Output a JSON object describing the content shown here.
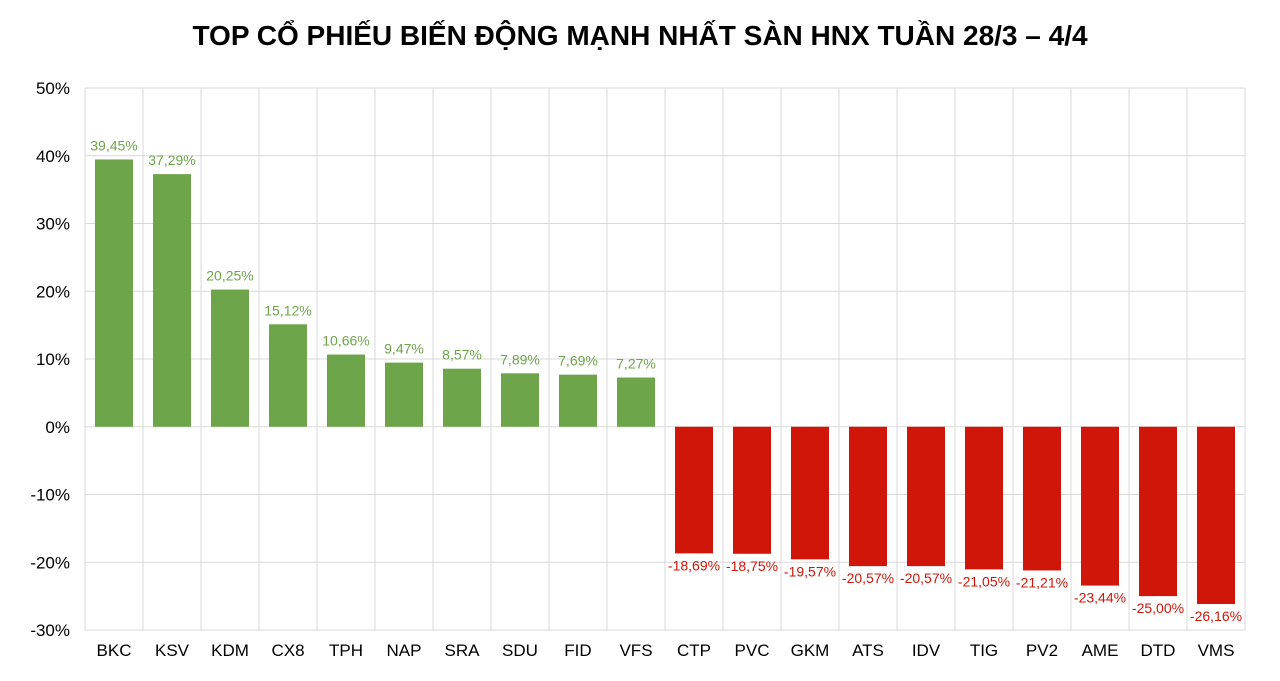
{
  "chart_data": {
    "type": "bar",
    "title": "TOP CỔ PHIẾU BIẾN ĐỘNG MẠNH NHẤT SÀN HNX TUẦN 28/3 – 4/4",
    "xlabel": "",
    "ylabel": "",
    "ylim": [
      -30,
      50
    ],
    "yticks": [
      "50%",
      "40%",
      "30%",
      "20%",
      "10%",
      "0%",
      "-10%",
      "-20%",
      "-30%"
    ],
    "ytick_values": [
      50,
      40,
      30,
      20,
      10,
      0,
      -10,
      -20,
      -30
    ],
    "grid": true,
    "legend": "none",
    "categories": [
      "BKC",
      "KSV",
      "KDM",
      "CX8",
      "TPH",
      "NAP",
      "SRA",
      "SDU",
      "FID",
      "VFS",
      "CTP",
      "PVC",
      "GKM",
      "ATS",
      "IDV",
      "TIG",
      "PV2",
      "AME",
      "DTD",
      "VMS"
    ],
    "values": [
      39.45,
      37.29,
      20.25,
      15.12,
      10.66,
      9.47,
      8.57,
      7.89,
      7.69,
      7.27,
      -18.69,
      -18.75,
      -19.57,
      -20.57,
      -20.57,
      -21.05,
      -21.21,
      -23.44,
      -25.0,
      -26.16
    ],
    "data_labels": [
      "39,45%",
      "37,29%",
      "20,25%",
      "15,12%",
      "10,66%",
      "9,47%",
      "8,57%",
      "7,89%",
      "7,69%",
      "7,27%",
      "-18,69%",
      "-18,75%",
      "-19,57%",
      "-20,57%",
      "-20,57%",
      "-21,05%",
      "-21,21%",
      "-23,44%",
      "-25,00%",
      "-26,16%"
    ],
    "colors": {
      "positive": "#6ea44a",
      "negative": "#d01608",
      "grid": "#d9d9d9"
    }
  }
}
